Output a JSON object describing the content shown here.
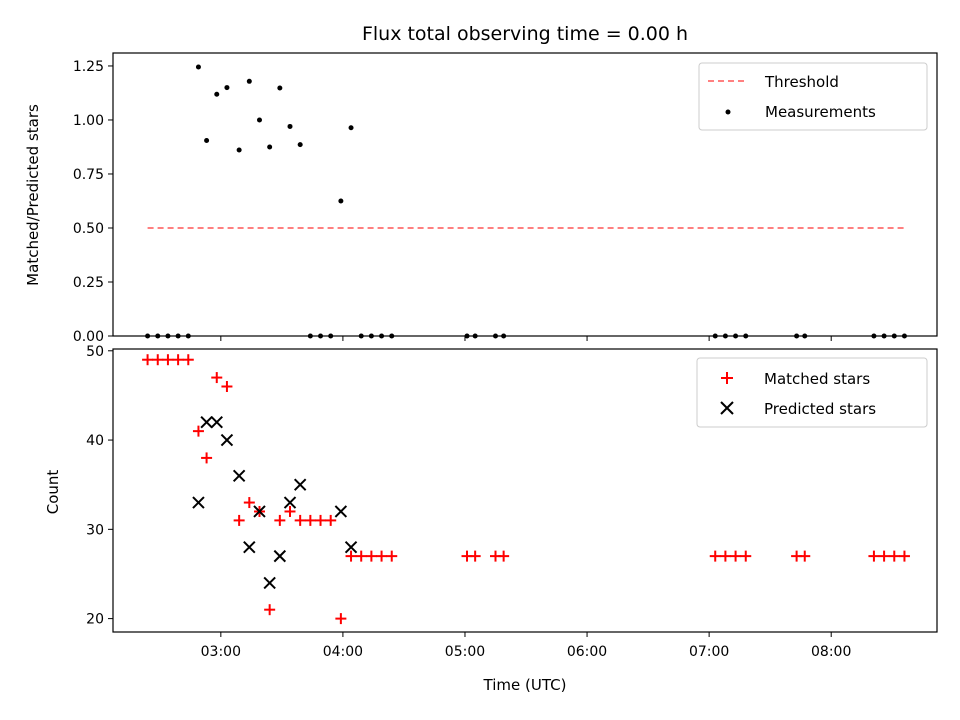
{
  "chart_data": [
    {
      "type": "scatter",
      "title": "Flux total observing time = 0.00 h",
      "xlabel": "",
      "ylabel": "Matched/Predicted stars",
      "xlim": [
        "02:07",
        "08:52"
      ],
      "ylim": [
        0,
        1.31
      ],
      "yticks": [
        0.0,
        0.25,
        0.5,
        0.75,
        1.0,
        1.25
      ],
      "ytick_labels": [
        "0.00",
        "0.25",
        "0.50",
        "0.75",
        "1.00",
        "1.25"
      ],
      "legend_position": "top-right",
      "series": [
        {
          "name": "Threshold",
          "kind": "line",
          "style": "dashed",
          "color": "#ff8080",
          "x": [
            "02:24",
            "08:36"
          ],
          "y": [
            0.5,
            0.5
          ]
        },
        {
          "name": "Measurements",
          "kind": "scatter",
          "marker": "dot",
          "color": "#000000",
          "x": [
            "02:24",
            "02:29",
            "02:34",
            "02:39",
            "02:44",
            "02:49",
            "02:53",
            "02:58",
            "03:03",
            "03:09",
            "03:14",
            "03:19",
            "03:24",
            "03:29",
            "03:34",
            "03:39",
            "03:44",
            "03:49",
            "03:54",
            "03:59",
            "04:04",
            "04:09",
            "04:14",
            "04:19",
            "04:24",
            "05:01",
            "05:05",
            "05:15",
            "05:19",
            "07:03",
            "07:08",
            "07:13",
            "07:18",
            "07:43",
            "07:47",
            "08:21",
            "08:26",
            "08:31",
            "08:36"
          ],
          "y": [
            0,
            0,
            0,
            0,
            0,
            1.245,
            0.905,
            1.119,
            1.15,
            0.861,
            1.179,
            1.0,
            0.875,
            1.148,
            0.97,
            0.886,
            0,
            0,
            0,
            0.625,
            0.964,
            0,
            0,
            0,
            0,
            0,
            0,
            0,
            0,
            0,
            0,
            0,
            0,
            0,
            0,
            0,
            0,
            0,
            0
          ]
        }
      ]
    },
    {
      "type": "scatter",
      "title": "",
      "xlabel": "Time (UTC)",
      "ylabel": "Count",
      "xlim": [
        "02:07",
        "08:52"
      ],
      "ylim": [
        18.5,
        50.2
      ],
      "yticks": [
        20,
        30,
        40,
        50
      ],
      "ytick_labels": [
        "20",
        "30",
        "40",
        "50"
      ],
      "xticks": [
        "03:00",
        "04:00",
        "05:00",
        "06:00",
        "07:00",
        "08:00"
      ],
      "xtick_labels": [
        "03:00",
        "04:00",
        "05:00",
        "06:00",
        "07:00",
        "08:00"
      ],
      "legend_position": "top-right",
      "series": [
        {
          "name": "Matched stars",
          "kind": "scatter",
          "marker": "plus",
          "color": "#ff0000",
          "x": [
            "02:24",
            "02:29",
            "02:34",
            "02:39",
            "02:44",
            "02:49",
            "02:53",
            "02:58",
            "03:03",
            "03:09",
            "03:14",
            "03:19",
            "03:24",
            "03:29",
            "03:34",
            "03:39",
            "03:44",
            "03:49",
            "03:54",
            "03:59",
            "04:04",
            "04:09",
            "04:14",
            "04:19",
            "04:24",
            "05:01",
            "05:05",
            "05:15",
            "05:19",
            "07:03",
            "07:08",
            "07:13",
            "07:18",
            "07:43",
            "07:47",
            "08:21",
            "08:26",
            "08:31",
            "08:36"
          ],
          "y": [
            49,
            49,
            49,
            49,
            49,
            41,
            38,
            47,
            46,
            31,
            33,
            32,
            21,
            31,
            32,
            31,
            31,
            31,
            31,
            20,
            27,
            27,
            27,
            27,
            27,
            27,
            27,
            27,
            27,
            27,
            27,
            27,
            27,
            27,
            27,
            27,
            27,
            27,
            27
          ]
        },
        {
          "name": "Predicted stars",
          "kind": "scatter",
          "marker": "x",
          "color": "#000000",
          "x": [
            "02:49",
            "02:53",
            "02:58",
            "03:03",
            "03:09",
            "03:14",
            "03:19",
            "03:24",
            "03:29",
            "03:34",
            "03:39",
            "03:59",
            "04:04"
          ],
          "y": [
            33,
            42,
            42,
            40,
            36,
            28,
            32,
            24,
            27,
            33,
            35,
            32,
            28
          ]
        }
      ]
    }
  ]
}
